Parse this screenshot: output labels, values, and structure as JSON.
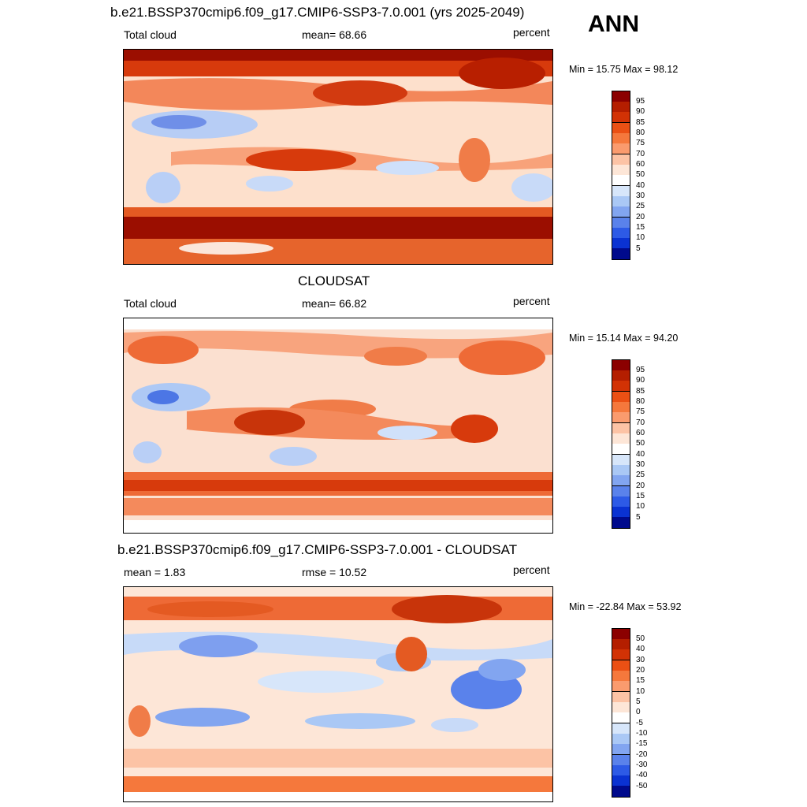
{
  "season": "ANN",
  "unit_label": "percent",
  "panels": [
    {
      "title": "b.e21.BSSP370cmip6.f09_g17.CMIP6-SSP3-7.0.001 (yrs 2025-2049)",
      "left_text": "Total cloud",
      "center_text": "mean=  68.66",
      "right_text": "percent",
      "minmax": "Min =  15.75 Max =  98.12",
      "colorbar_labels": [
        "95",
        "90",
        "85",
        "80",
        "75",
        "70",
        "60",
        "50",
        "40",
        "30",
        "25",
        "20",
        "15",
        "10",
        "5"
      ]
    },
    {
      "title": "CLOUDSAT",
      "left_text": "Total cloud",
      "center_text": "mean=  66.82",
      "right_text": "percent",
      "minmax": "Min =  15.14 Max =  94.20",
      "colorbar_labels": [
        "95",
        "90",
        "85",
        "80",
        "75",
        "70",
        "60",
        "50",
        "40",
        "30",
        "25",
        "20",
        "15",
        "10",
        "5"
      ]
    },
    {
      "title": "b.e21.BSSP370cmip6.f09_g17.CMIP6-SSP3-7.0.001 - CLOUDSAT",
      "left_text": "mean =   1.83",
      "center_text": "rmse =  10.52",
      "right_text": "percent",
      "minmax": "Min = -22.84 Max =  53.92",
      "colorbar_labels": [
        "50",
        "40",
        "30",
        "20",
        "15",
        "10",
        "5",
        "0",
        "-5",
        "-10",
        "-15",
        "-20",
        "-30",
        "-40",
        "-50"
      ]
    }
  ],
  "colors": {
    "scale": [
      "#8b0000",
      "#b41e00",
      "#d23205",
      "#eb5014",
      "#f5783c",
      "#fa9b6e",
      "#fcc3a5",
      "#fde6d7",
      "#ffffff",
      "#d7e6fa",
      "#aac8f5",
      "#82a5f0",
      "#5a82eb",
      "#2d5ae6",
      "#0a32d2",
      "#000a8c"
    ]
  }
}
